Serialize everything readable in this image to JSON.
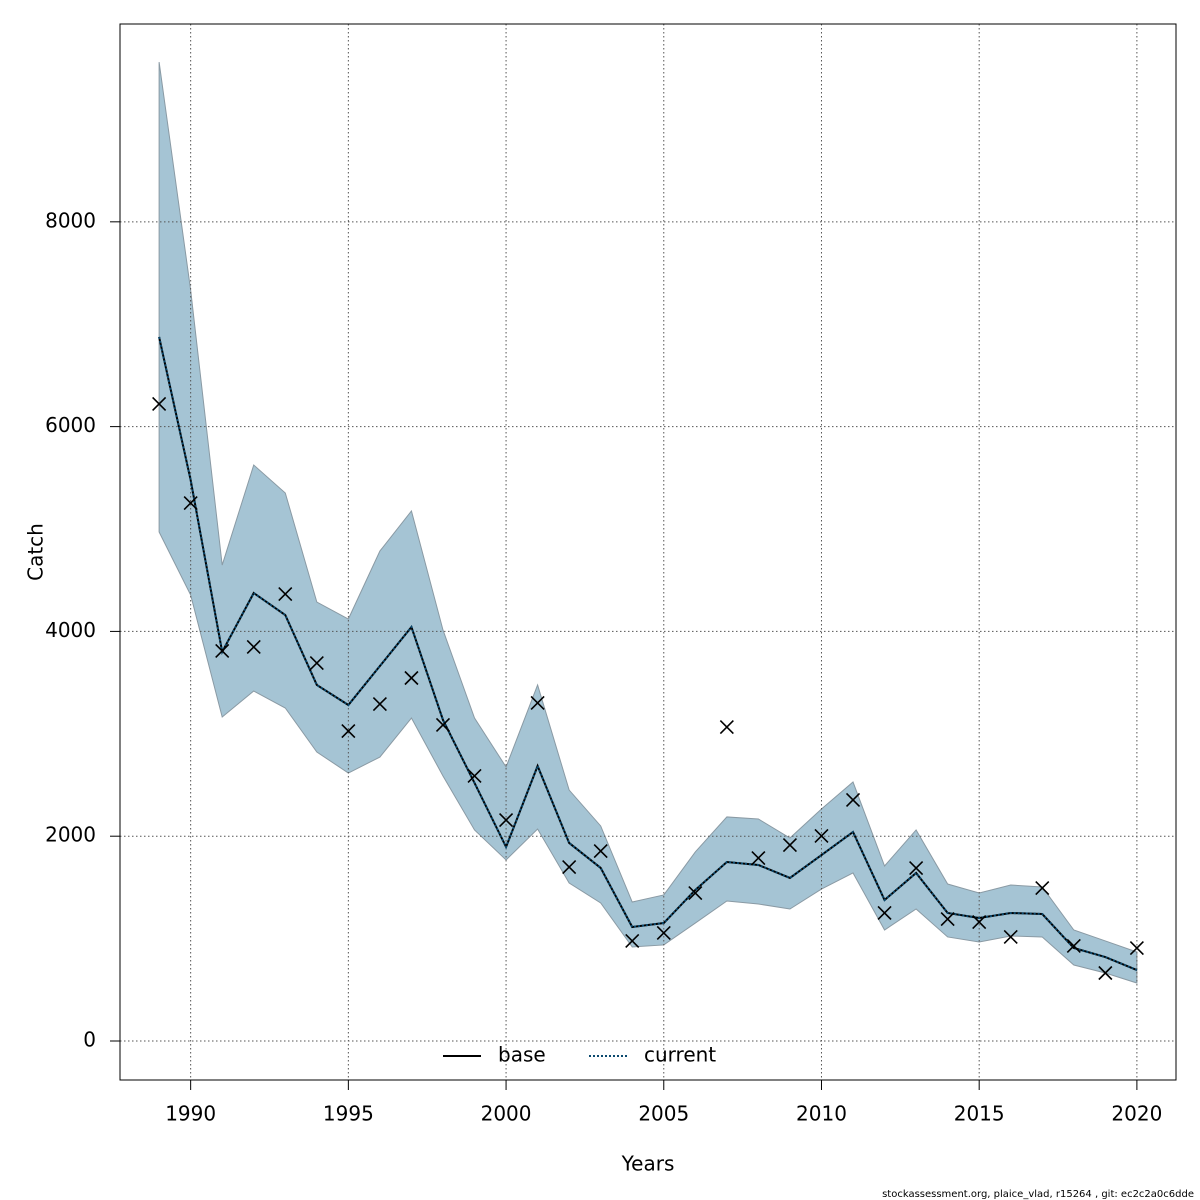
{
  "chart_data": {
    "type": "line",
    "xlabel": "Years",
    "ylabel": "Catch",
    "footer": "stockassessment.org, plaice_vlad, r15264 , git: ec2c2a0c6dde",
    "x": [
      1989,
      1990,
      1991,
      1992,
      1993,
      1994,
      1995,
      1996,
      1997,
      1998,
      1999,
      2000,
      2001,
      2002,
      2003,
      2004,
      2005,
      2006,
      2007,
      2008,
      2009,
      2010,
      2011,
      2012,
      2013,
      2014,
      2015,
      2016,
      2017,
      2018,
      2019,
      2020
    ],
    "xlim": [
      1987.76,
      2021.24
    ],
    "xticks": [
      1990,
      1995,
      2000,
      2005,
      2010,
      2015,
      2020
    ],
    "ylim": [
      -381,
      9932
    ],
    "yticks": [
      0,
      2000,
      4000,
      6000,
      8000
    ],
    "grid": true,
    "legend": "bottom",
    "band": {
      "color": "#a5c4d4",
      "edge": "#8a9aa4",
      "lower": [
        4971,
        4355,
        3164,
        3418,
        3252,
        2822,
        2617,
        2773,
        3154,
        2588,
        2061,
        1768,
        2070,
        1543,
        1348,
        918,
        938,
        1152,
        1367,
        1338,
        1289,
        1484,
        1641,
        1084,
        1289,
        1016,
        967,
        1025,
        1016,
        742,
        664,
        566
      ],
      "upper": [
        9560,
        7334,
        4648,
        5625,
        5352,
        4287,
        4121,
        4785,
        5176,
        4014,
        3154,
        2676,
        3477,
        2451,
        2100,
        1357,
        1426,
        1846,
        2188,
        2168,
        1982,
        2266,
        2529,
        1709,
        2061,
        1533,
        1445,
        1523,
        1504,
        1084,
        977,
        869
      ]
    },
    "series": [
      {
        "name": "base",
        "color": "#000000",
        "dash": false,
        "values": [
          6875,
          5478,
          3800,
          4375,
          4160,
          3477,
          3281,
          3662,
          4043,
          3135,
          2520,
          1895,
          2686,
          1934,
          1690,
          1113,
          1152,
          1475,
          1748,
          1719,
          1592,
          1816,
          2041,
          1377,
          1641,
          1250,
          1201,
          1250,
          1240,
          908,
          820,
          693
        ]
      },
      {
        "name": "current",
        "color": "#0b4a6f",
        "dash": true,
        "values": [
          6875,
          5478,
          3800,
          4375,
          4160,
          3477,
          3281,
          3662,
          4043,
          3135,
          2520,
          1895,
          2686,
          1934,
          1690,
          1113,
          1152,
          1475,
          1748,
          1719,
          1592,
          1816,
          2041,
          1377,
          1641,
          1250,
          1201,
          1250,
          1240,
          908,
          820,
          693
        ]
      }
    ],
    "observed": {
      "color": "#000000",
      "values": [
        6221,
        5254,
        3809,
        3848,
        4365,
        3691,
        3027,
        3291,
        3545,
        3086,
        2588,
        2158,
        3301,
        1699,
        1855,
        977,
        1055,
        1445,
        3066,
        1787,
        1914,
        2002,
        2354,
        1250,
        1689,
        1191,
        1162,
        1016,
        1494,
        928,
        664,
        908
      ]
    }
  }
}
